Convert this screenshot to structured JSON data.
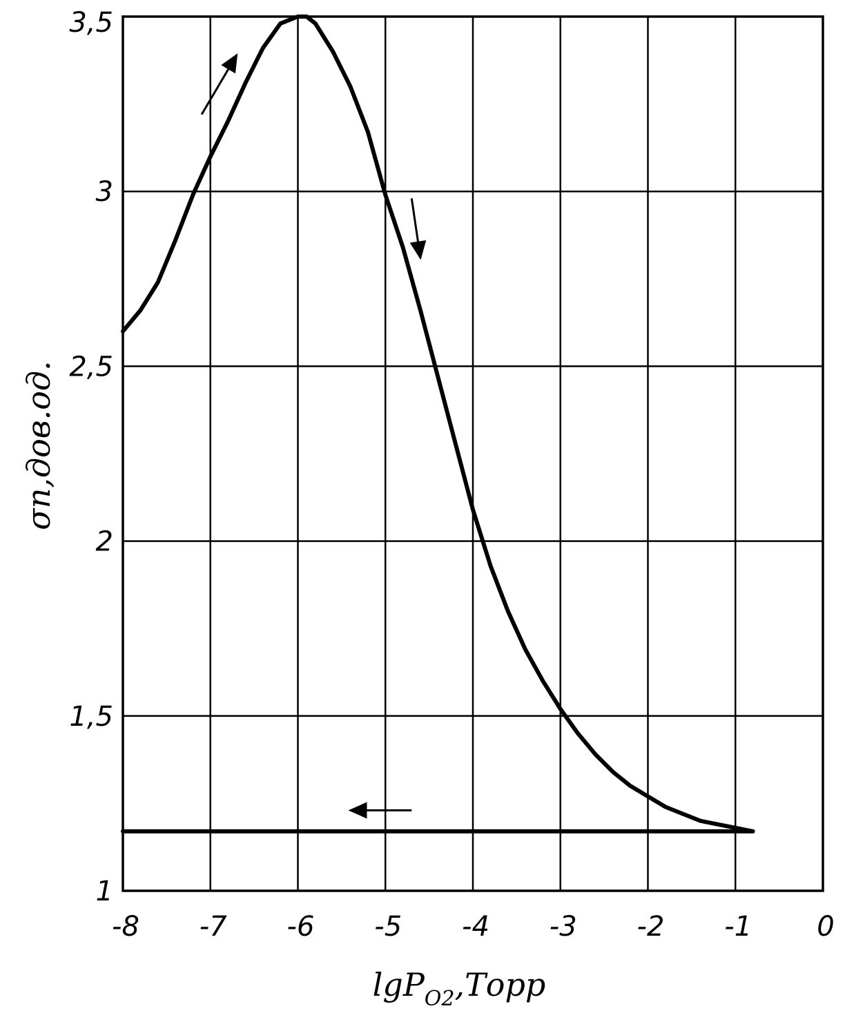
{
  "chart_data": {
    "type": "line",
    "title": "",
    "xlabel": "lgP",
    "xlabel_subscript": "O2",
    "xlabel_suffix": ",Торр",
    "ylabel": "σп,дов.од.",
    "xlim": [
      -8,
      0
    ],
    "ylim": [
      1,
      3.5
    ],
    "x_ticks": [
      -8,
      -7,
      -6,
      -5,
      -4,
      -3,
      -2,
      -1,
      0
    ],
    "x_tick_labels": [
      "-8",
      "-7",
      "-6",
      "-5",
      "-4",
      "-3",
      "-2",
      "-1",
      "0"
    ],
    "y_ticks": [
      1,
      1.5,
      2,
      2.5,
      3,
      3.5
    ],
    "y_tick_labels": [
      "1",
      "1,5",
      "2",
      "2,5",
      "3",
      "3,5"
    ],
    "grid": true,
    "colors": {
      "line": "#000000",
      "grid": "#000000",
      "background": "#ffffff"
    },
    "series": [
      {
        "x": [
          -8.0,
          -7.8,
          -7.6,
          -7.4,
          -7.2,
          -7.0,
          -6.8,
          -6.6,
          -6.4,
          -6.2,
          -6.0,
          -5.9,
          -5.8,
          -5.6,
          -5.4,
          -5.2,
          -5.0,
          -4.8,
          -4.6,
          -4.4,
          -4.2,
          -4.0,
          -3.8,
          -3.6,
          -3.4,
          -3.2,
          -3.0,
          -2.8,
          -2.6,
          -2.4,
          -2.2,
          -2.0,
          -1.8,
          -1.6,
          -1.4,
          -1.2,
          -1.0,
          -0.8
        ],
        "y": [
          2.6,
          2.66,
          2.74,
          2.86,
          2.99,
          3.1,
          3.2,
          3.31,
          3.41,
          3.48,
          3.5,
          3.5,
          3.48,
          3.4,
          3.3,
          3.17,
          2.99,
          2.84,
          2.66,
          2.47,
          2.28,
          2.09,
          1.93,
          1.8,
          1.69,
          1.6,
          1.52,
          1.45,
          1.39,
          1.34,
          1.3,
          1.27,
          1.24,
          1.22,
          1.2,
          1.19,
          1.18,
          1.17
        ]
      },
      {
        "x": [
          -0.8,
          -8.0
        ],
        "y": [
          1.17,
          1.17
        ]
      }
    ],
    "annotations": [
      {
        "type": "arrow",
        "direction": "up",
        "x_from": -7.1,
        "y_from": 3.22,
        "x_to": -6.7,
        "y_to": 3.39
      },
      {
        "type": "arrow",
        "direction": "down",
        "x_from": -4.7,
        "y_from": 2.98,
        "x_to": -4.6,
        "y_to": 2.81
      },
      {
        "type": "arrow",
        "direction": "left",
        "x_from": -4.7,
        "y_from": 1.23,
        "x_to": -5.4,
        "y_to": 1.23
      }
    ]
  }
}
